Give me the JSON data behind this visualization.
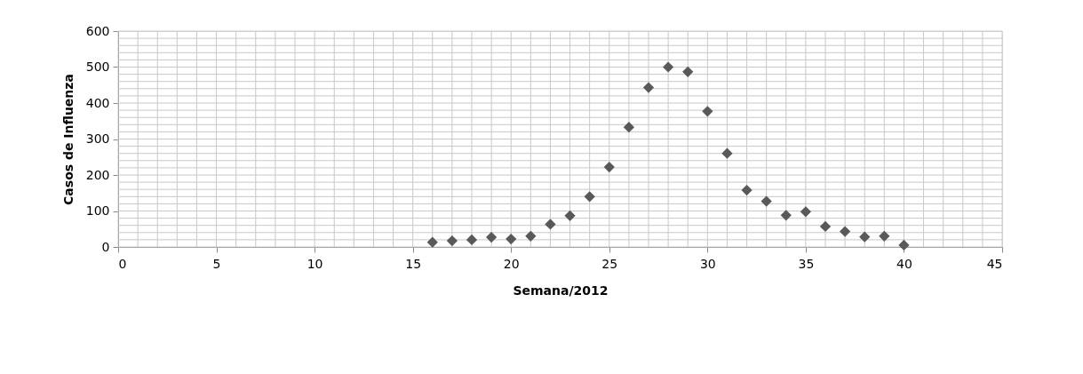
{
  "chart_data": {
    "type": "scatter",
    "xlabel": "Semana/2012",
    "ylabel": "Casos de Influenza",
    "x": [
      16,
      17,
      18,
      19,
      20,
      21,
      22,
      23,
      24,
      25,
      26,
      27,
      28,
      29,
      30,
      31,
      32,
      33,
      34,
      35,
      36,
      37,
      38,
      39,
      40
    ],
    "series": [
      {
        "color": "#595959",
        "values": [
          13,
          17,
          20,
          27,
          22,
          30,
          63,
          87,
          140,
          222,
          333,
          443,
          500,
          487,
          377,
          260,
          158,
          127,
          88,
          98,
          57,
          43,
          28,
          30,
          5
        ]
      }
    ],
    "xlim": [
      0,
      45
    ],
    "xticks": [
      0,
      5,
      10,
      15,
      20,
      25,
      30,
      35,
      40,
      45
    ],
    "ylim": [
      0,
      600
    ],
    "yticks": [
      0,
      100,
      200,
      300,
      400,
      500,
      600
    ],
    "grid": true,
    "marker": "diamond"
  }
}
